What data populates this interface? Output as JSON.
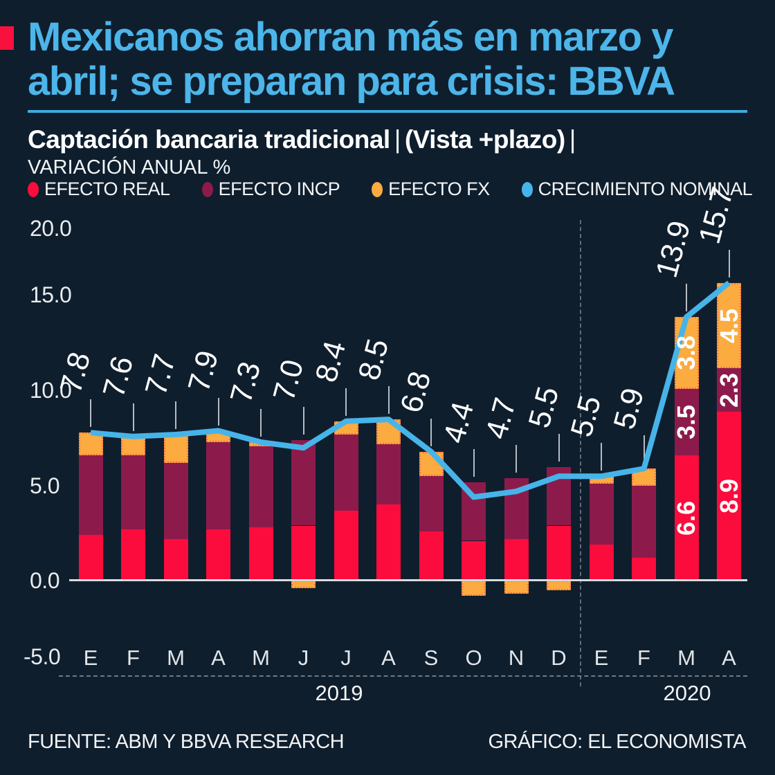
{
  "header": {
    "title_line1": "Mexicanos ahorran más en marzo y",
    "title_line2": "abril; se preparan para crisis: BBVA",
    "subtitle_main": "Captación bancaria tradicional",
    "subtitle_sep1": "|",
    "subtitle_paren": "(Vista +plazo)",
    "subtitle_sep2": "|",
    "subtitle_small": "VARIACIÓN ANUAL %"
  },
  "legend": [
    {
      "label": "EFECTO REAL",
      "color": "#fb0c3d"
    },
    {
      "label": "EFECTO INCP",
      "color": "#8c1b4b"
    },
    {
      "label": "EFECTO FX",
      "color": "#fbab40"
    },
    {
      "label": "CRECIMIENTO NOMINAL",
      "color": "#47b4e9"
    }
  ],
  "chart_data": {
    "type": "bar",
    "stacked": true,
    "title": "Captación bancaria tradicional (Vista +plazo), variación anual %",
    "categories": [
      "E",
      "F",
      "M",
      "A",
      "M",
      "J",
      "J",
      "A",
      "S",
      "O",
      "N",
      "D",
      "E",
      "F",
      "M",
      "A"
    ],
    "year_groups": [
      {
        "label": "2019",
        "months": 12
      },
      {
        "label": "2020",
        "months": 4
      }
    ],
    "series": [
      {
        "name": "EFECTO REAL",
        "type": "bar",
        "color": "#fb0c3d",
        "values": [
          2.4,
          2.7,
          2.2,
          2.7,
          2.8,
          2.9,
          3.7,
          4.0,
          2.6,
          2.1,
          2.2,
          2.9,
          1.9,
          1.2,
          6.6,
          8.9
        ]
      },
      {
        "name": "EFECTO INCP",
        "type": "bar",
        "color": "#8c1b4b",
        "values": [
          4.2,
          3.9,
          4.0,
          4.6,
          4.3,
          4.5,
          4.0,
          3.2,
          2.9,
          3.1,
          3.2,
          3.1,
          3.2,
          3.8,
          3.5,
          2.3
        ]
      },
      {
        "name": "EFECTO FX",
        "type": "bar",
        "color": "#fbab40",
        "values": [
          1.2,
          1.0,
          1.5,
          0.6,
          0.2,
          -0.4,
          0.7,
          1.3,
          1.3,
          -0.8,
          -0.7,
          -0.5,
          0.4,
          0.9,
          3.8,
          4.5
        ]
      },
      {
        "name": "CRECIMIENTO NOMINAL",
        "type": "line",
        "color": "#47b4e9",
        "values": [
          7.8,
          7.6,
          7.7,
          7.9,
          7.3,
          7.0,
          8.4,
          8.5,
          6.8,
          4.4,
          4.7,
          5.5,
          5.5,
          5.9,
          13.9,
          15.7
        ]
      }
    ],
    "bar_total_labels": [
      "7.8",
      "7.6",
      "7.7",
      "7.9",
      "7.3",
      "7.0",
      "8.4",
      "8.5",
      "6.8",
      "4.4",
      "4.7",
      "5.5",
      "5.5",
      "5.9",
      "13.9",
      "15.7"
    ],
    "inside_labels": [
      {
        "bar": 14,
        "values": [
          "6.6",
          "3.5",
          "3.8"
        ]
      },
      {
        "bar": 15,
        "values": [
          "8.9",
          "2.3",
          "4.5"
        ]
      }
    ],
    "y_ticks": [
      "20.0",
      "15.0",
      "10.0",
      "5.0",
      "0.0",
      "-5.0"
    ],
    "ylim": [
      -5,
      20
    ],
    "grid": false,
    "legend_position": "top"
  },
  "footer": {
    "source": "FUENTE: ABM Y BBVA RESEARCH",
    "credit": "GRÁFICO: EL ECONOMISTA"
  },
  "colors": {
    "background": "#0f1e2d",
    "accent_blue": "#47b4e9",
    "title_blue": "#4cb5e9",
    "red": "#fb0c3d",
    "maroon": "#8c1b4b",
    "orange": "#fbab40",
    "axis_text": "#e9ecee",
    "corner_red": "#f8113f"
  }
}
